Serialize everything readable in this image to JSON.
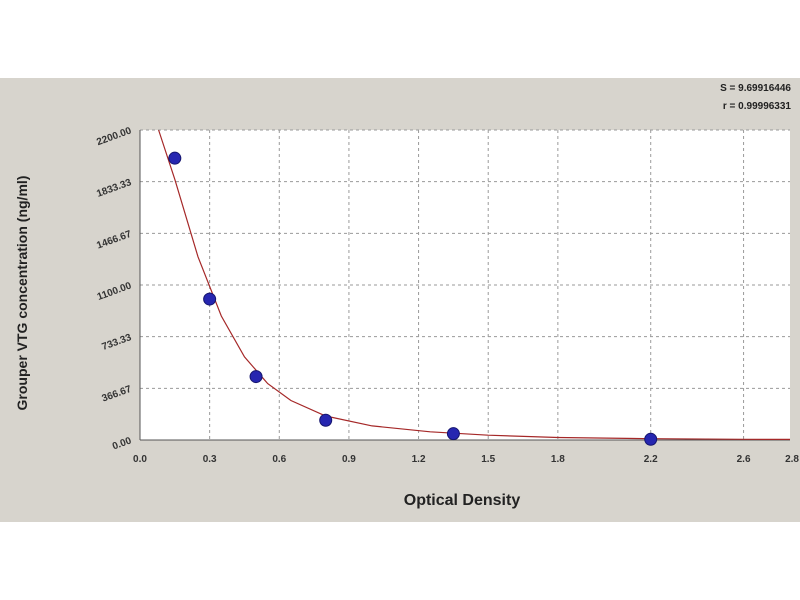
{
  "chart_data": {
    "type": "scatter",
    "title": "",
    "xlabel": "Optical Density",
    "ylabel": "Grouper VTG concentration (ng/ml)",
    "xlim": [
      0.0,
      2.8
    ],
    "ylim": [
      0.0,
      2200.0
    ],
    "x_ticks": [
      "0.0",
      "0.3",
      "0.6",
      "0.9",
      "1.2",
      "1.5",
      "1.8",
      "2.2",
      "2.6"
    ],
    "x_tick_values": [
      0.0,
      0.3,
      0.6,
      0.9,
      1.2,
      1.5,
      1.8,
      2.2,
      2.6
    ],
    "x_end_label": "2.8",
    "y_ticks": [
      "0.00",
      "366.67",
      "733.33",
      "1100.00",
      "1466.67",
      "1833.33",
      "2200.00"
    ],
    "y_tick_values": [
      0,
      366.67,
      733.33,
      1100,
      1466.67,
      1833.33,
      2200
    ],
    "grid": true,
    "points": [
      {
        "x": 0.15,
        "y": 2000
      },
      {
        "x": 0.3,
        "y": 1000
      },
      {
        "x": 0.5,
        "y": 450
      },
      {
        "x": 0.8,
        "y": 140
      },
      {
        "x": 1.35,
        "y": 45
      },
      {
        "x": 2.2,
        "y": 5
      }
    ],
    "fit_curve": [
      {
        "x": 0.08,
        "y": 2200
      },
      {
        "x": 0.15,
        "y": 1850
      },
      {
        "x": 0.25,
        "y": 1300
      },
      {
        "x": 0.35,
        "y": 880
      },
      {
        "x": 0.45,
        "y": 590
      },
      {
        "x": 0.55,
        "y": 400
      },
      {
        "x": 0.65,
        "y": 280
      },
      {
        "x": 0.8,
        "y": 170
      },
      {
        "x": 1.0,
        "y": 100
      },
      {
        "x": 1.25,
        "y": 58
      },
      {
        "x": 1.5,
        "y": 34
      },
      {
        "x": 1.8,
        "y": 18
      },
      {
        "x": 2.2,
        "y": 9
      },
      {
        "x": 2.6,
        "y": 5
      },
      {
        "x": 2.8,
        "y": 4
      }
    ],
    "colors": {
      "point": "#2626b0",
      "point_edge": "#15156e",
      "curve": "#a52828",
      "grid": "#9a9a9a",
      "panel": "#d7d4cd",
      "plot_bg": "#ffffff"
    },
    "stats": {
      "s_label": "S = 9.69916446",
      "r_label": "r = 0.99996331"
    }
  }
}
